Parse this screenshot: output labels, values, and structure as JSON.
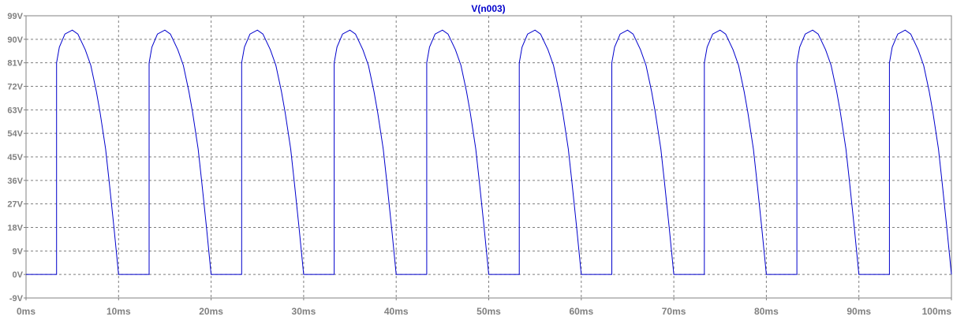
{
  "chart_data": {
    "type": "line",
    "title": "V(n003)",
    "xlabel": "",
    "ylabel": "",
    "xlim": [
      0,
      100
    ],
    "ylim": [
      -9,
      99
    ],
    "x_ticks": [
      0,
      10,
      20,
      30,
      40,
      50,
      60,
      70,
      80,
      90,
      100
    ],
    "x_tick_labels": [
      "0ms",
      "10ms",
      "20ms",
      "30ms",
      "40ms",
      "50ms",
      "60ms",
      "70ms",
      "80ms",
      "90ms",
      "100ms"
    ],
    "y_ticks": [
      -9,
      0,
      9,
      18,
      27,
      36,
      45,
      54,
      63,
      72,
      81,
      90,
      99
    ],
    "y_tick_labels": [
      "-9V",
      "0V",
      "9V",
      "18V",
      "27V",
      "36V",
      "45V",
      "54V",
      "63V",
      "72V",
      "81V",
      "90V",
      "99V"
    ],
    "grid": true,
    "colors": {
      "trace": "#0000cc",
      "title": "#0000cc",
      "grid": "#7f7f7f",
      "axis": "#808080",
      "tick_text": "#808080"
    },
    "series": [
      {
        "name": "V(n003)",
        "x": [
          0,
          3.3,
          3.3,
          3.6,
          4.2,
          5.0,
          5.6,
          6.4,
          7.0,
          7.6,
          8.0,
          8.6,
          9.0,
          9.5,
          10.0,
          10.0,
          13.3,
          13.3,
          13.6,
          14.2,
          15.0,
          15.6,
          16.4,
          17.0,
          17.6,
          18.0,
          18.6,
          19.0,
          19.5,
          20.0,
          20.0,
          23.3,
          23.3,
          23.6,
          24.2,
          25.0,
          25.6,
          26.4,
          27.0,
          27.6,
          28.0,
          28.6,
          29.0,
          29.5,
          30.0,
          30.0,
          33.3,
          33.3,
          33.6,
          34.2,
          35.0,
          35.6,
          36.4,
          37.0,
          37.6,
          38.0,
          38.6,
          39.0,
          39.5,
          40.0,
          40.0,
          43.3,
          43.3,
          43.6,
          44.2,
          45.0,
          45.6,
          46.4,
          47.0,
          47.6,
          48.0,
          48.6,
          49.0,
          49.5,
          50.0,
          50.0,
          53.3,
          53.3,
          53.6,
          54.2,
          55.0,
          55.6,
          56.4,
          57.0,
          57.6,
          58.0,
          58.6,
          59.0,
          59.5,
          60.0,
          60.0,
          63.3,
          63.3,
          63.6,
          64.2,
          65.0,
          65.6,
          66.4,
          67.0,
          67.6,
          68.0,
          68.6,
          69.0,
          69.5,
          70.0,
          70.0,
          73.3,
          73.3,
          73.6,
          74.2,
          75.0,
          75.6,
          76.4,
          77.0,
          77.6,
          78.0,
          78.6,
          79.0,
          79.5,
          80.0,
          80.0,
          83.3,
          83.3,
          83.6,
          84.2,
          85.0,
          85.6,
          86.4,
          87.0,
          87.6,
          88.0,
          88.6,
          89.0,
          89.5,
          90.0,
          90.0,
          93.3,
          93.3,
          93.6,
          94.2,
          95.0,
          95.6,
          96.4,
          97.0,
          97.6,
          98.0,
          98.6,
          99.0,
          99.5,
          100.0
        ],
        "y": [
          0,
          0,
          81,
          87,
          92,
          93.5,
          92,
          86,
          80,
          70,
          62,
          48,
          35,
          18,
          0,
          0,
          0,
          81,
          87,
          92,
          93.5,
          92,
          86,
          80,
          70,
          62,
          48,
          35,
          18,
          0,
          0,
          0,
          81,
          87,
          92,
          93.5,
          92,
          86,
          80,
          70,
          62,
          48,
          35,
          18,
          0,
          0,
          0,
          81,
          87,
          92,
          93.5,
          92,
          86,
          80,
          70,
          62,
          48,
          35,
          18,
          0,
          0,
          0,
          81,
          87,
          92,
          93.5,
          92,
          86,
          80,
          70,
          62,
          48,
          35,
          18,
          0,
          0,
          0,
          81,
          87,
          92,
          93.5,
          92,
          86,
          80,
          70,
          62,
          48,
          35,
          18,
          0,
          0,
          0,
          81,
          87,
          92,
          93.5,
          92,
          86,
          80,
          70,
          62,
          48,
          35,
          18,
          0,
          0,
          0,
          81,
          87,
          92,
          93.5,
          92,
          86,
          80,
          70,
          62,
          48,
          35,
          18,
          0,
          0,
          0,
          81,
          87,
          92,
          93.5,
          92,
          86,
          80,
          70,
          62,
          48,
          35,
          18,
          0,
          0,
          0,
          81,
          87,
          92,
          93.5,
          92,
          86,
          80,
          70,
          62,
          48,
          35,
          18,
          0
        ]
      }
    ]
  }
}
